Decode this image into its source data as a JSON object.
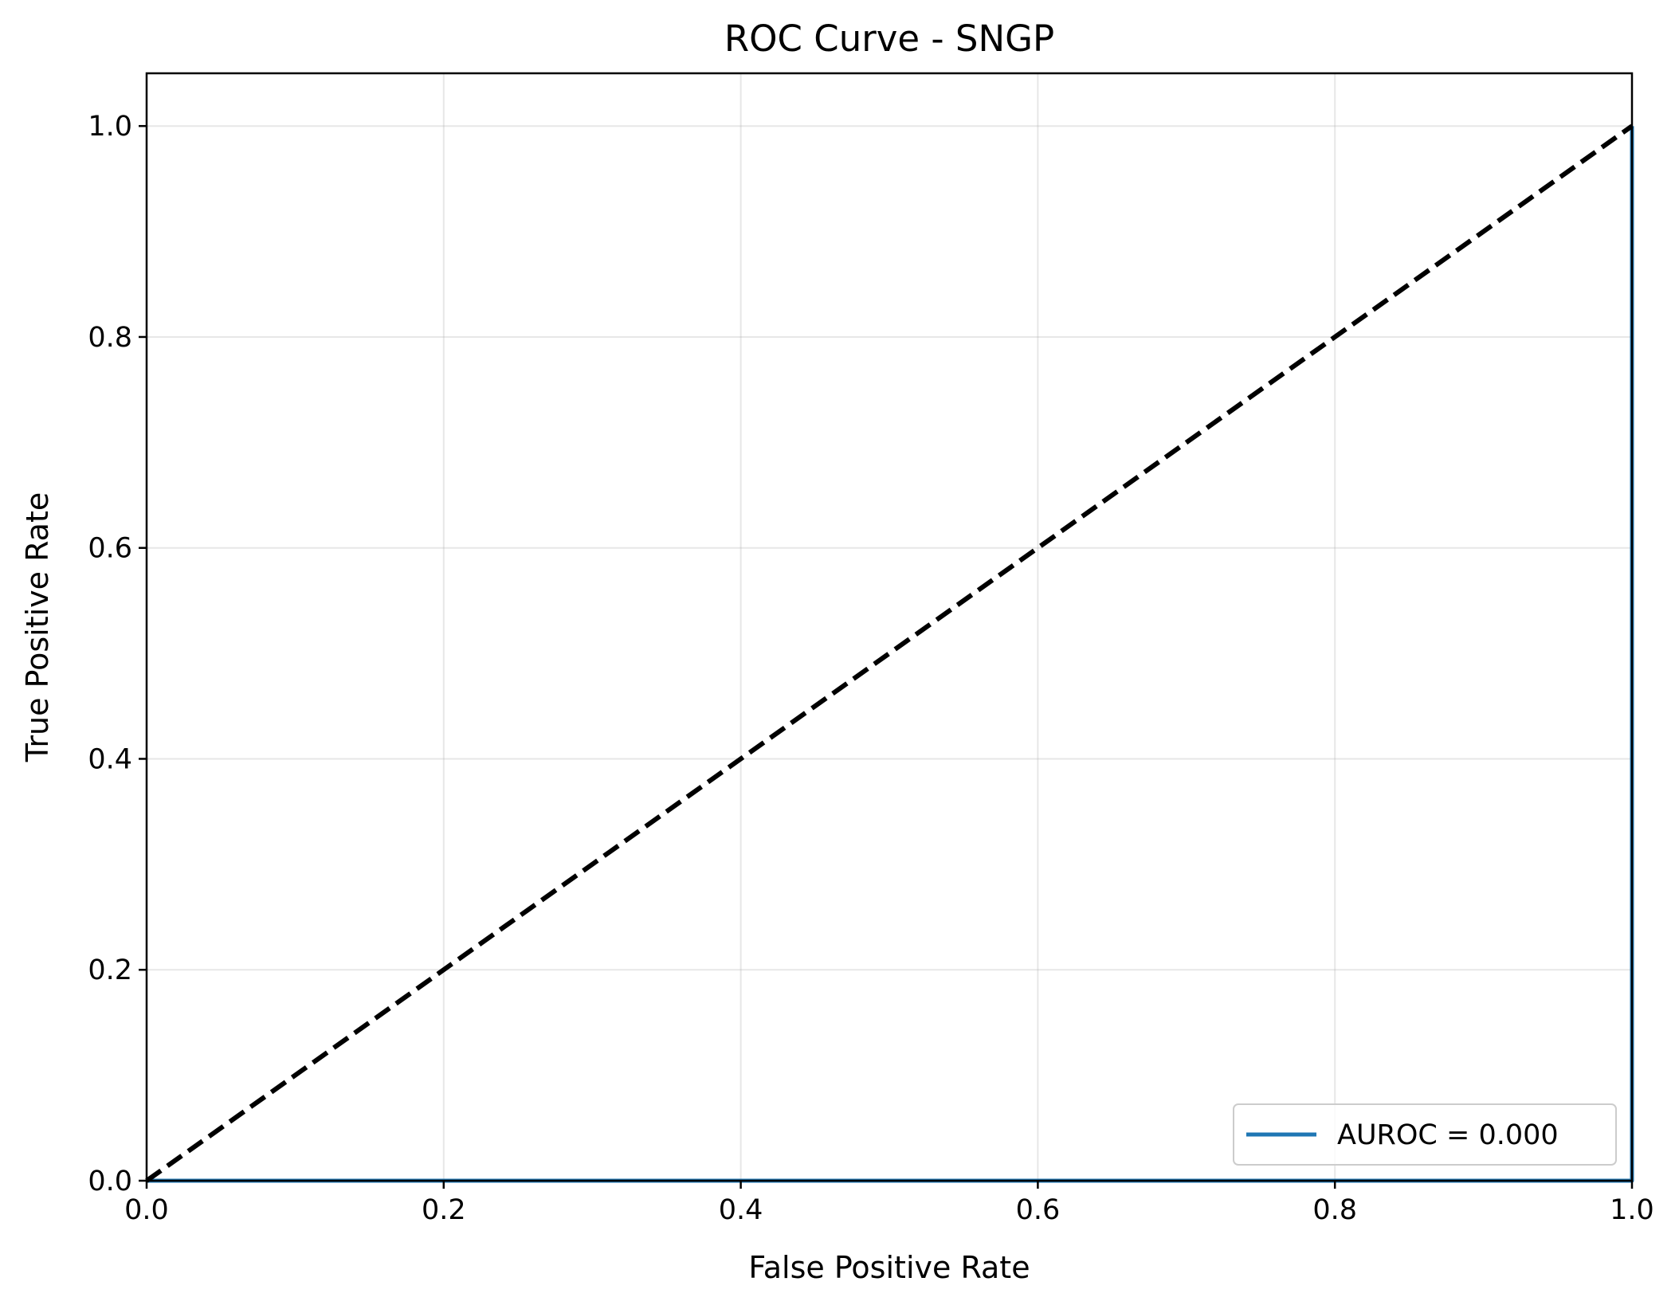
{
  "chart_data": {
    "type": "line",
    "title": "ROC Curve - SNGP",
    "xlabel": "False Positive Rate",
    "ylabel": "True Positive Rate",
    "xlim": [
      0.0,
      1.0
    ],
    "ylim": [
      0.0,
      1.05
    ],
    "xticks": [
      "0.0",
      "0.2",
      "0.4",
      "0.6",
      "0.8",
      "1.0"
    ],
    "yticks": [
      "0.0",
      "0.2",
      "0.4",
      "0.6",
      "0.8",
      "1.0"
    ],
    "grid": true,
    "legend_position": "lower-right",
    "series": [
      {
        "name": "AUROC = 0.000",
        "color": "#1f77b4",
        "style": "solid",
        "x": [
          0.0,
          1.0,
          1.0
        ],
        "y": [
          0.0,
          0.0,
          1.0
        ]
      },
      {
        "color": "#000000",
        "style": "dashed",
        "x": [
          0.0,
          1.0
        ],
        "y": [
          0.0,
          1.0
        ]
      }
    ]
  }
}
